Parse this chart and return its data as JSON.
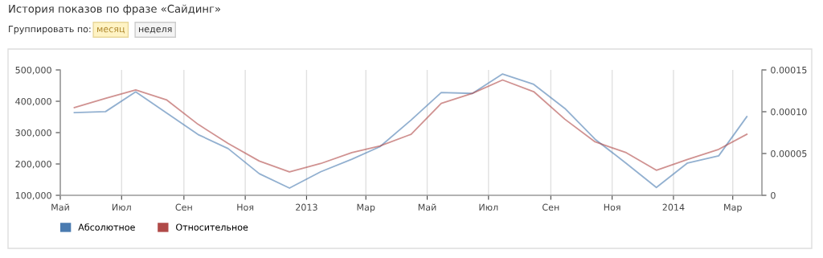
{
  "chart_data": {
    "type": "line",
    "title": "История показов по фразе «Сайдинг»",
    "annotations": [
      "Группировать по:",
      "месяц",
      "неделя"
    ],
    "x": [
      "2012-05-15",
      "2012-06-15",
      "2012-07-15",
      "2012-08-15",
      "2012-09-15",
      "2012-10-15",
      "2012-11-15",
      "2012-12-15",
      "2013-01-15",
      "2013-02-15",
      "2013-03-15",
      "2013-04-15",
      "2013-05-15",
      "2013-06-15",
      "2013-07-15",
      "2013-08-15",
      "2013-09-15",
      "2013-10-15",
      "2013-11-15",
      "2013-12-15",
      "2014-01-15",
      "2014-02-15",
      "2014-03-15"
    ],
    "series": [
      {
        "name": "Абсолютное",
        "color": "#4a7bb0",
        "values": [
          364000,
          367000,
          430000,
          362000,
          294000,
          249000,
          169000,
          123000,
          175000,
          215000,
          255000,
          340000,
          428000,
          425000,
          487000,
          454000,
          377000,
          279000,
          202000,
          125000,
          203000,
          226000,
          351000
        ]
      },
      {
        "name": "Относительное",
        "color": "#b04a48",
        "axis": "y2",
        "values": [
          0.000105,
          0.000116,
          0.000126,
          0.000114,
          8.5e-05,
          6.2e-05,
          4.1e-05,
          2.8e-05,
          3.8e-05,
          5.1e-05,
          5.9e-05,
          7.3e-05,
          0.00011,
          0.000122,
          0.000138,
          0.000124,
          9.1e-05,
          6.4e-05,
          5.1e-05,
          3e-05,
          4.3e-05,
          5.5e-05,
          7.3e-05
        ]
      }
    ],
    "xlim": [
      "2012-05-01",
      "2014-03-30"
    ],
    "xticks": [
      {
        "value": "2012-05-01",
        "label": "Май"
      },
      {
        "value": "2012-07-01",
        "label": "Июл"
      },
      {
        "value": "2012-09-01",
        "label": "Сен"
      },
      {
        "value": "2012-11-01",
        "label": "Ноя"
      },
      {
        "value": "2013-01-01",
        "label": "2013"
      },
      {
        "value": "2013-03-01",
        "label": "Мар"
      },
      {
        "value": "2013-05-01",
        "label": "Май"
      },
      {
        "value": "2013-07-01",
        "label": "Июл"
      },
      {
        "value": "2013-09-01",
        "label": "Сен"
      },
      {
        "value": "2013-11-01",
        "label": "Ноя"
      },
      {
        "value": "2014-01-01",
        "label": "2014"
      },
      {
        "value": "2014-03-01",
        "label": "Мар"
      }
    ],
    "ylim": [
      100000,
      500000
    ],
    "yticks": [
      {
        "value": 100000,
        "label": "100,000"
      },
      {
        "value": 200000,
        "label": "200,000"
      },
      {
        "value": 300000,
        "label": "300,000"
      },
      {
        "value": 400000,
        "label": "400,000"
      },
      {
        "value": 500000,
        "label": "500,000"
      }
    ],
    "y2lim": [
      0,
      0.00015
    ],
    "y2ticks": [
      {
        "value": 0,
        "label": "0"
      },
      {
        "value": 5e-05,
        "label": "0.00005"
      },
      {
        "value": 0.0001,
        "label": "0.00010"
      },
      {
        "value": 0.00015,
        "label": "0.00015"
      }
    ],
    "grid": "x",
    "legend": "bottom left",
    "marker": "none",
    "line_style": "solid"
  }
}
